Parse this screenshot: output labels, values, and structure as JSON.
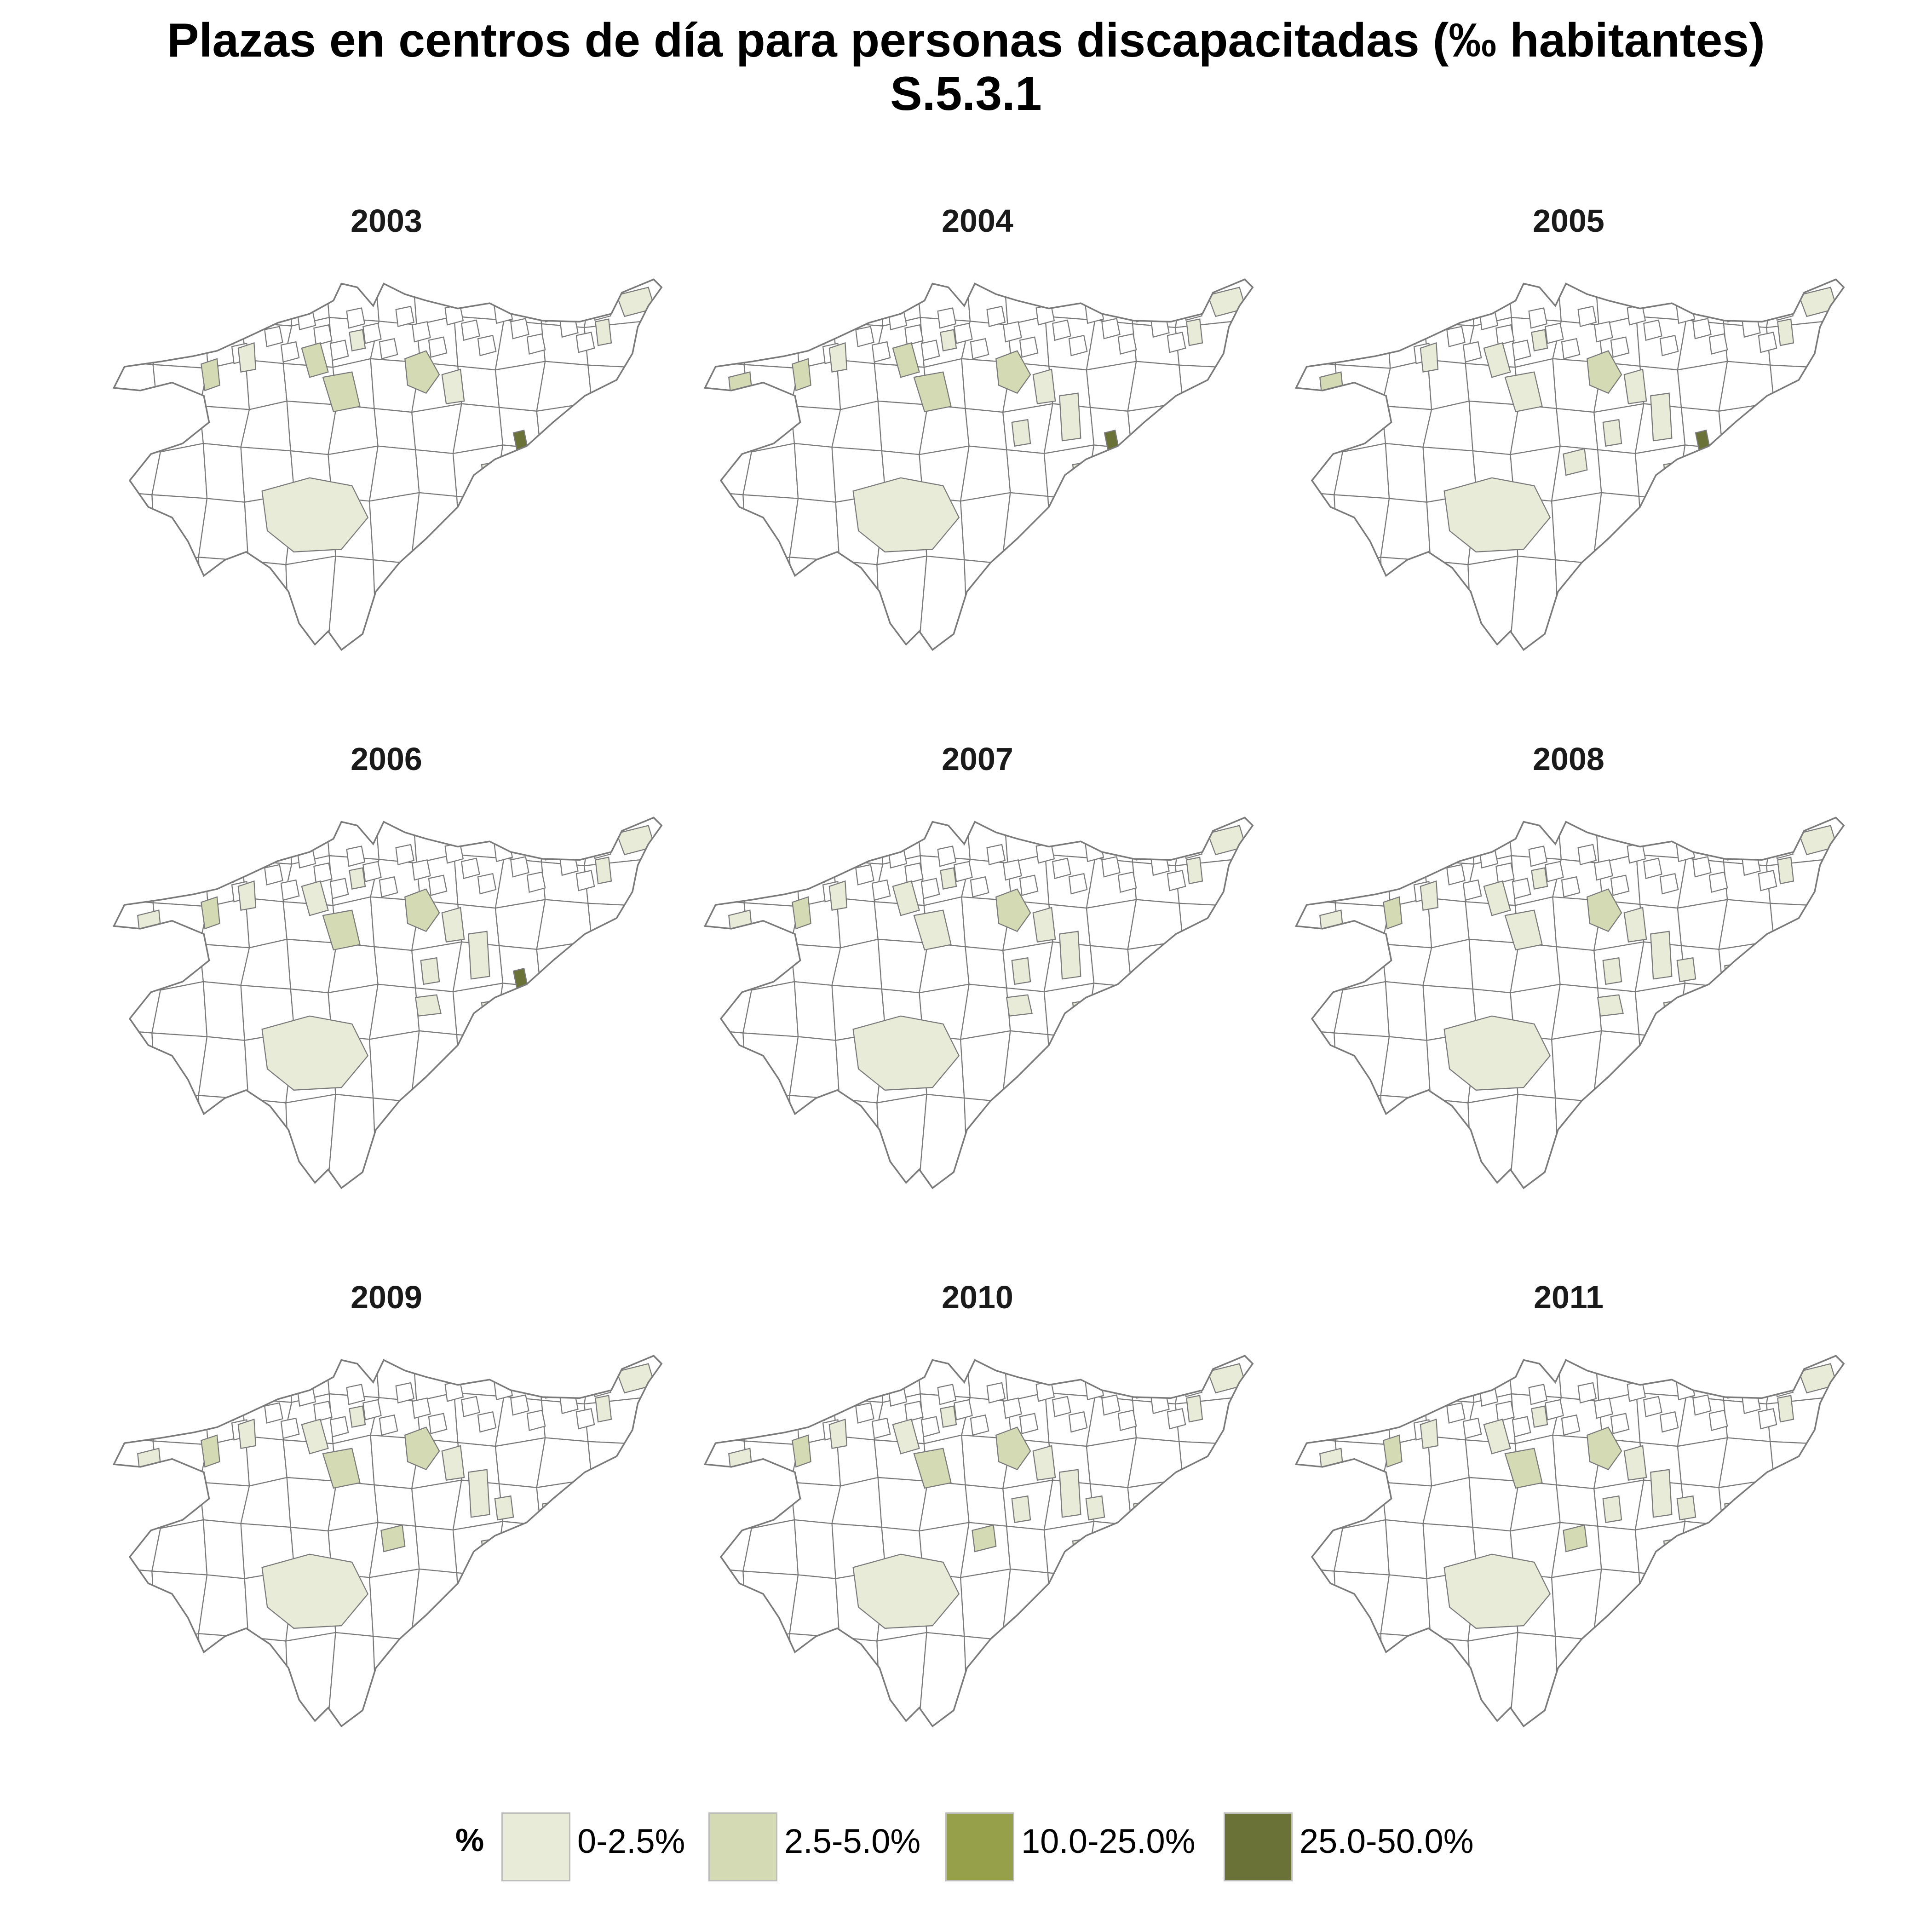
{
  "title": {
    "line1": "Plazas en centros de día para personas discapacitadas (‰ habitantes)",
    "line2": "S.5.3.1"
  },
  "panels": [
    {
      "year": "2003",
      "fills": [
        [
          "r13",
          1
        ],
        [
          "r22",
          1
        ],
        [
          "r25",
          1
        ],
        [
          "r6",
          1
        ],
        [
          "r10",
          0
        ],
        [
          "r15",
          0
        ],
        [
          "r40",
          0
        ],
        [
          "r49",
          0
        ],
        [
          "r60",
          0
        ],
        [
          "r66",
          0
        ],
        [
          "r37",
          3
        ],
        [
          "r61",
          0
        ]
      ]
    },
    {
      "year": "2004",
      "fills": [
        [
          "r13",
          1
        ],
        [
          "r22",
          1
        ],
        [
          "r25",
          1
        ],
        [
          "r6",
          1
        ],
        [
          "r10",
          0
        ],
        [
          "r15",
          0
        ],
        [
          "r40",
          0
        ],
        [
          "r49",
          0
        ],
        [
          "r60",
          0
        ],
        [
          "r66",
          0
        ],
        [
          "r37",
          3
        ],
        [
          "r61",
          0
        ],
        [
          "r1",
          1
        ],
        [
          "r31",
          0
        ],
        [
          "r35",
          0
        ]
      ]
    },
    {
      "year": "2005",
      "fills": [
        [
          "r13",
          0
        ],
        [
          "r22",
          0
        ],
        [
          "r25",
          1
        ],
        [
          "r10",
          0
        ],
        [
          "r15",
          0
        ],
        [
          "r40",
          0
        ],
        [
          "r49",
          0
        ],
        [
          "r60",
          0
        ],
        [
          "r66",
          0
        ],
        [
          "r37",
          3
        ],
        [
          "r61",
          0
        ],
        [
          "r1",
          1
        ],
        [
          "r31",
          0
        ],
        [
          "r35",
          0
        ],
        [
          "r45",
          0
        ]
      ]
    },
    {
      "year": "2006",
      "fills": [
        [
          "r13",
          0
        ],
        [
          "r22",
          1
        ],
        [
          "r25",
          1
        ],
        [
          "r6",
          1
        ],
        [
          "r10",
          0
        ],
        [
          "r15",
          0
        ],
        [
          "r40",
          0
        ],
        [
          "r49",
          0
        ],
        [
          "r60",
          0
        ],
        [
          "r66",
          0
        ],
        [
          "r37",
          3
        ],
        [
          "r61",
          0
        ],
        [
          "r1",
          0
        ],
        [
          "r31",
          0
        ],
        [
          "r35",
          0
        ],
        [
          "r48",
          0
        ]
      ]
    },
    {
      "year": "2007",
      "fills": [
        [
          "r13",
          0
        ],
        [
          "r22",
          0
        ],
        [
          "r25",
          1
        ],
        [
          "r6",
          1
        ],
        [
          "r10",
          0
        ],
        [
          "r15",
          0
        ],
        [
          "r40",
          0
        ],
        [
          "r49",
          0
        ],
        [
          "r60",
          0
        ],
        [
          "r66",
          0
        ],
        [
          "r61",
          0
        ],
        [
          "r1",
          0
        ],
        [
          "r31",
          0
        ],
        [
          "r35",
          0
        ],
        [
          "r48",
          0
        ]
      ]
    },
    {
      "year": "2008",
      "fills": [
        [
          "r13",
          0
        ],
        [
          "r22",
          0
        ],
        [
          "r25",
          1
        ],
        [
          "r6",
          1
        ],
        [
          "r10",
          0
        ],
        [
          "r15",
          0
        ],
        [
          "r40",
          0
        ],
        [
          "r49",
          0
        ],
        [
          "r60",
          0
        ],
        [
          "r66",
          0
        ],
        [
          "r61",
          0
        ],
        [
          "r1",
          0
        ],
        [
          "r31",
          0
        ],
        [
          "r35",
          0
        ],
        [
          "r48",
          0
        ],
        [
          "r38",
          0
        ],
        [
          "r44",
          0
        ]
      ]
    },
    {
      "year": "2009",
      "fills": [
        [
          "r13",
          0
        ],
        [
          "r22",
          1
        ],
        [
          "r25",
          1
        ],
        [
          "r6",
          1
        ],
        [
          "r10",
          0
        ],
        [
          "r15",
          0
        ],
        [
          "r40",
          0
        ],
        [
          "r49",
          0
        ],
        [
          "r60",
          0
        ],
        [
          "r66",
          0
        ],
        [
          "r61",
          0
        ],
        [
          "r1",
          0
        ],
        [
          "r31",
          0
        ],
        [
          "r45",
          1
        ],
        [
          "r38",
          0
        ],
        [
          "r44",
          0
        ]
      ]
    },
    {
      "year": "2010",
      "fills": [
        [
          "r13",
          0
        ],
        [
          "r22",
          1
        ],
        [
          "r25",
          1
        ],
        [
          "r6",
          1
        ],
        [
          "r10",
          0
        ],
        [
          "r15",
          0
        ],
        [
          "r40",
          0
        ],
        [
          "r49",
          0
        ],
        [
          "r60",
          0
        ],
        [
          "r66",
          0
        ],
        [
          "r61",
          0
        ],
        [
          "r1",
          0
        ],
        [
          "r31",
          0
        ],
        [
          "r35",
          0
        ],
        [
          "r45",
          1
        ],
        [
          "r38",
          0
        ],
        [
          "r44",
          0
        ]
      ]
    },
    {
      "year": "2011",
      "fills": [
        [
          "r13",
          0
        ],
        [
          "r22",
          1
        ],
        [
          "r25",
          1
        ],
        [
          "r6",
          1
        ],
        [
          "r10",
          0
        ],
        [
          "r15",
          0
        ],
        [
          "r40",
          0
        ],
        [
          "r49",
          0
        ],
        [
          "r60",
          0
        ],
        [
          "r66",
          0
        ],
        [
          "r61",
          0
        ],
        [
          "r1",
          0
        ],
        [
          "r31",
          0
        ],
        [
          "r35",
          0
        ],
        [
          "r45",
          1
        ],
        [
          "r38",
          0
        ],
        [
          "r44",
          0
        ],
        [
          "r4",
          2
        ]
      ]
    }
  ],
  "legend": {
    "title": "%",
    "items": [
      {
        "label": "0-2.5%",
        "color": "#e8ebd8"
      },
      {
        "label": "2.5-5.0%",
        "color": "#d4dab3"
      },
      {
        "label": "10.0-25.0%",
        "color": "#969f4a"
      },
      {
        "label": "25.0-50.0%",
        "color": "#6b7237"
      }
    ]
  },
  "map_colors": {
    "empty": "#ffffff",
    "border": "#7a7a7a"
  }
}
